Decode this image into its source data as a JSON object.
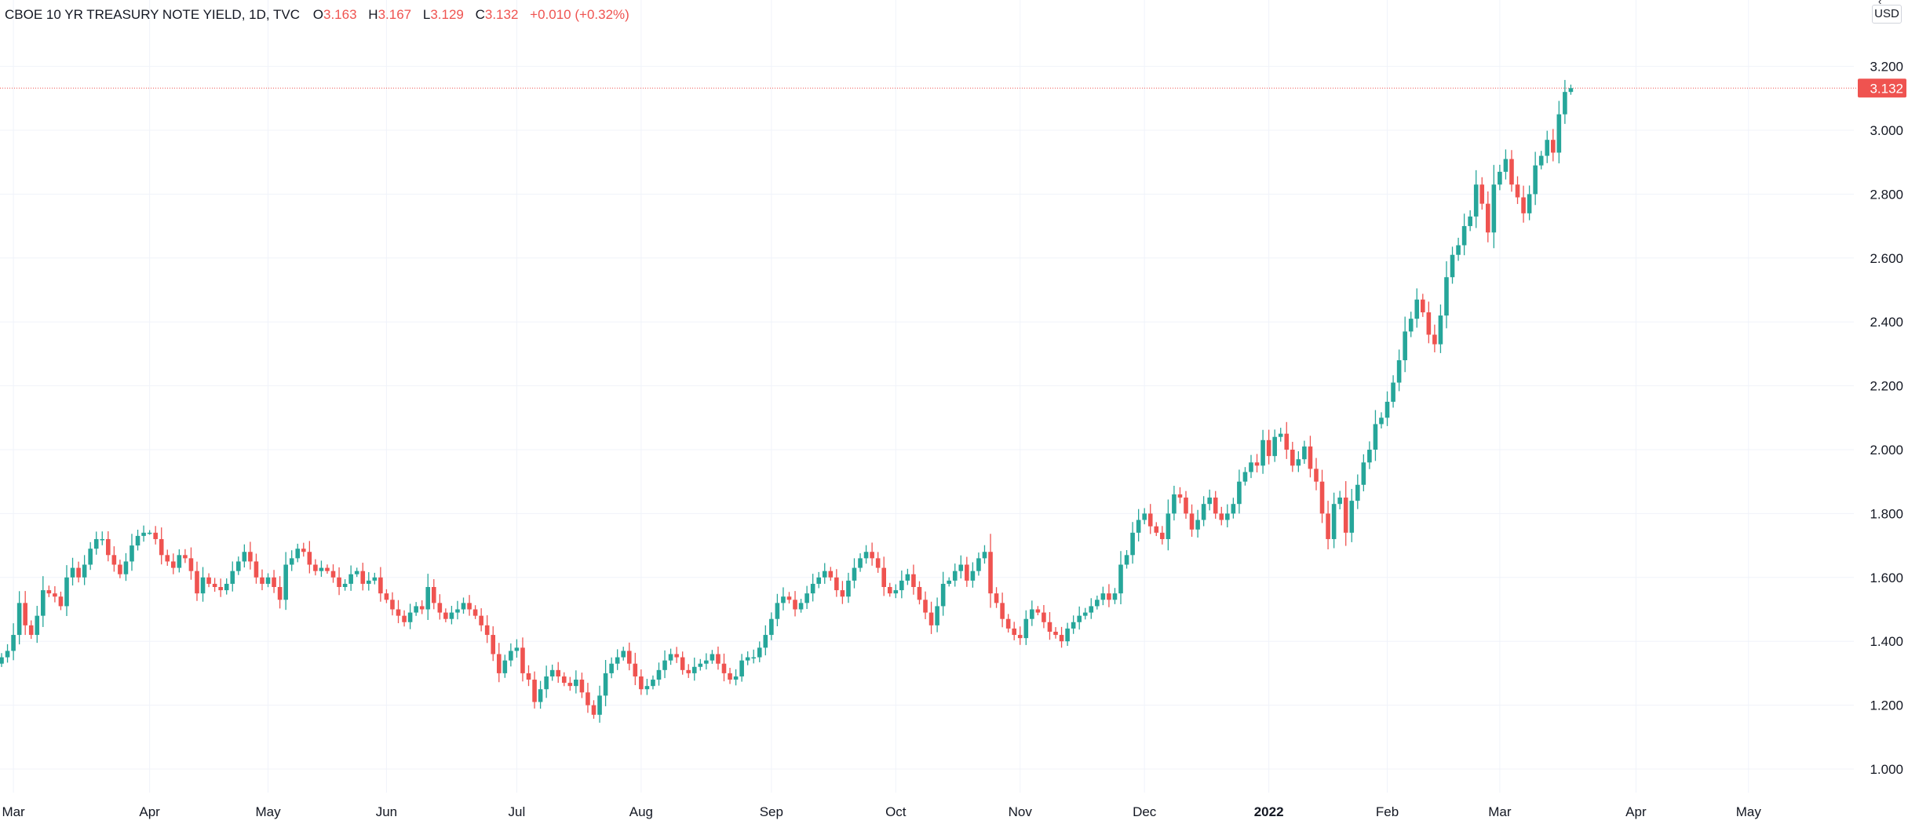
{
  "legend": {
    "title": "CBOE 10 YR TREASURY NOTE YIELD, 1D, TVC",
    "o_label": "O",
    "o_value": "3.163",
    "h_label": "H",
    "h_value": "3.167",
    "l_label": "L",
    "l_value": "3.129",
    "c_label": "C",
    "c_value": "3.132",
    "change": "+0.010 (+0.32%)"
  },
  "currency": "USD",
  "colors": {
    "up": "#26a69a",
    "down": "#ef5350",
    "grid": "#f0f3fa",
    "text": "#131722",
    "last_price": "#ef5350"
  },
  "chart_data": {
    "type": "candlestick",
    "title": "CBOE 10 YR TREASURY NOTE YIELD, 1D, TVC",
    "ylim": [
      0.94,
      3.27
    ],
    "y_ticks": [
      "1.000",
      "1.200",
      "1.400",
      "1.600",
      "1.800",
      "2.000",
      "2.200",
      "2.400",
      "2.600",
      "2.800",
      "3.000",
      "3.200"
    ],
    "x_ticks": [
      {
        "label": "Mar",
        "index": 2,
        "bold": false
      },
      {
        "label": "Apr",
        "index": 25,
        "bold": false
      },
      {
        "label": "May",
        "index": 45,
        "bold": false
      },
      {
        "label": "Jun",
        "index": 65,
        "bold": false
      },
      {
        "label": "Jul",
        "index": 87,
        "bold": false
      },
      {
        "label": "Aug",
        "index": 108,
        "bold": false
      },
      {
        "label": "Sep",
        "index": 130,
        "bold": false
      },
      {
        "label": "Oct",
        "index": 151,
        "bold": false
      },
      {
        "label": "Nov",
        "index": 172,
        "bold": false
      },
      {
        "label": "Dec",
        "index": 193,
        "bold": false
      },
      {
        "label": "2022",
        "index": 214,
        "bold": true
      },
      {
        "label": "Feb",
        "index": 234,
        "bold": false
      },
      {
        "label": "Mar",
        "index": 253,
        "bold": false
      },
      {
        "label": "Apr",
        "index": 276,
        "bold": false
      },
      {
        "label": "May",
        "index": 295,
        "bold": false
      }
    ],
    "last_price": 3.132,
    "last_price_label": "3.132",
    "closes": [
      1.35,
      1.37,
      1.42,
      1.52,
      1.45,
      1.42,
      1.48,
      1.56,
      1.55,
      1.54,
      1.51,
      1.6,
      1.63,
      1.6,
      1.64,
      1.69,
      1.72,
      1.72,
      1.67,
      1.64,
      1.61,
      1.65,
      1.7,
      1.73,
      1.74,
      1.74,
      1.72,
      1.67,
      1.65,
      1.63,
      1.67,
      1.66,
      1.62,
      1.55,
      1.6,
      1.58,
      1.57,
      1.56,
      1.58,
      1.62,
      1.65,
      1.68,
      1.65,
      1.6,
      1.58,
      1.6,
      1.57,
      1.53,
      1.64,
      1.66,
      1.69,
      1.68,
      1.64,
      1.62,
      1.63,
      1.62,
      1.6,
      1.57,
      1.58,
      1.61,
      1.62,
      1.58,
      1.59,
      1.6,
      1.55,
      1.53,
      1.5,
      1.48,
      1.46,
      1.49,
      1.51,
      1.5,
      1.57,
      1.52,
      1.49,
      1.47,
      1.49,
      1.5,
      1.52,
      1.5,
      1.48,
      1.45,
      1.42,
      1.36,
      1.3,
      1.34,
      1.37,
      1.38,
      1.3,
      1.28,
      1.21,
      1.25,
      1.29,
      1.31,
      1.29,
      1.27,
      1.26,
      1.28,
      1.24,
      1.2,
      1.17,
      1.23,
      1.3,
      1.33,
      1.35,
      1.37,
      1.33,
      1.29,
      1.25,
      1.26,
      1.28,
      1.31,
      1.34,
      1.36,
      1.35,
      1.31,
      1.3,
      1.32,
      1.33,
      1.34,
      1.36,
      1.33,
      1.3,
      1.28,
      1.29,
      1.34,
      1.35,
      1.35,
      1.38,
      1.42,
      1.47,
      1.52,
      1.54,
      1.53,
      1.5,
      1.52,
      1.55,
      1.58,
      1.6,
      1.62,
      1.6,
      1.56,
      1.54,
      1.59,
      1.63,
      1.66,
      1.68,
      1.66,
      1.63,
      1.57,
      1.55,
      1.56,
      1.59,
      1.61,
      1.57,
      1.53,
      1.49,
      1.45,
      1.51,
      1.58,
      1.59,
      1.62,
      1.64,
      1.59,
      1.62,
      1.66,
      1.68,
      1.55,
      1.52,
      1.47,
      1.44,
      1.42,
      1.41,
      1.47,
      1.5,
      1.49,
      1.46,
      1.43,
      1.42,
      1.4,
      1.44,
      1.46,
      1.48,
      1.49,
      1.51,
      1.53,
      1.55,
      1.53,
      1.55,
      1.64,
      1.67,
      1.74,
      1.78,
      1.8,
      1.76,
      1.74,
      1.72,
      1.8,
      1.86,
      1.85,
      1.8,
      1.75,
      1.78,
      1.83,
      1.85,
      1.8,
      1.78,
      1.8,
      1.83,
      1.9,
      1.93,
      1.96,
      1.95,
      2.03,
      1.98,
      2.04,
      2.05,
      2.0,
      1.95,
      1.97,
      2.01,
      1.94,
      1.9,
      1.8,
      1.72,
      1.83,
      1.85,
      1.74,
      1.84,
      1.89,
      1.96,
      2.0,
      2.08,
      2.1,
      2.15,
      2.21,
      2.28,
      2.37,
      2.41,
      2.47,
      2.43,
      2.36,
      2.33,
      2.42,
      2.54,
      2.61,
      2.64,
      2.7,
      2.73,
      2.83,
      2.77,
      2.68,
      2.83,
      2.87,
      2.91,
      2.83,
      2.79,
      2.74,
      2.8,
      2.89,
      2.92,
      2.97,
      2.93,
      3.05,
      3.12,
      3.132
    ]
  }
}
